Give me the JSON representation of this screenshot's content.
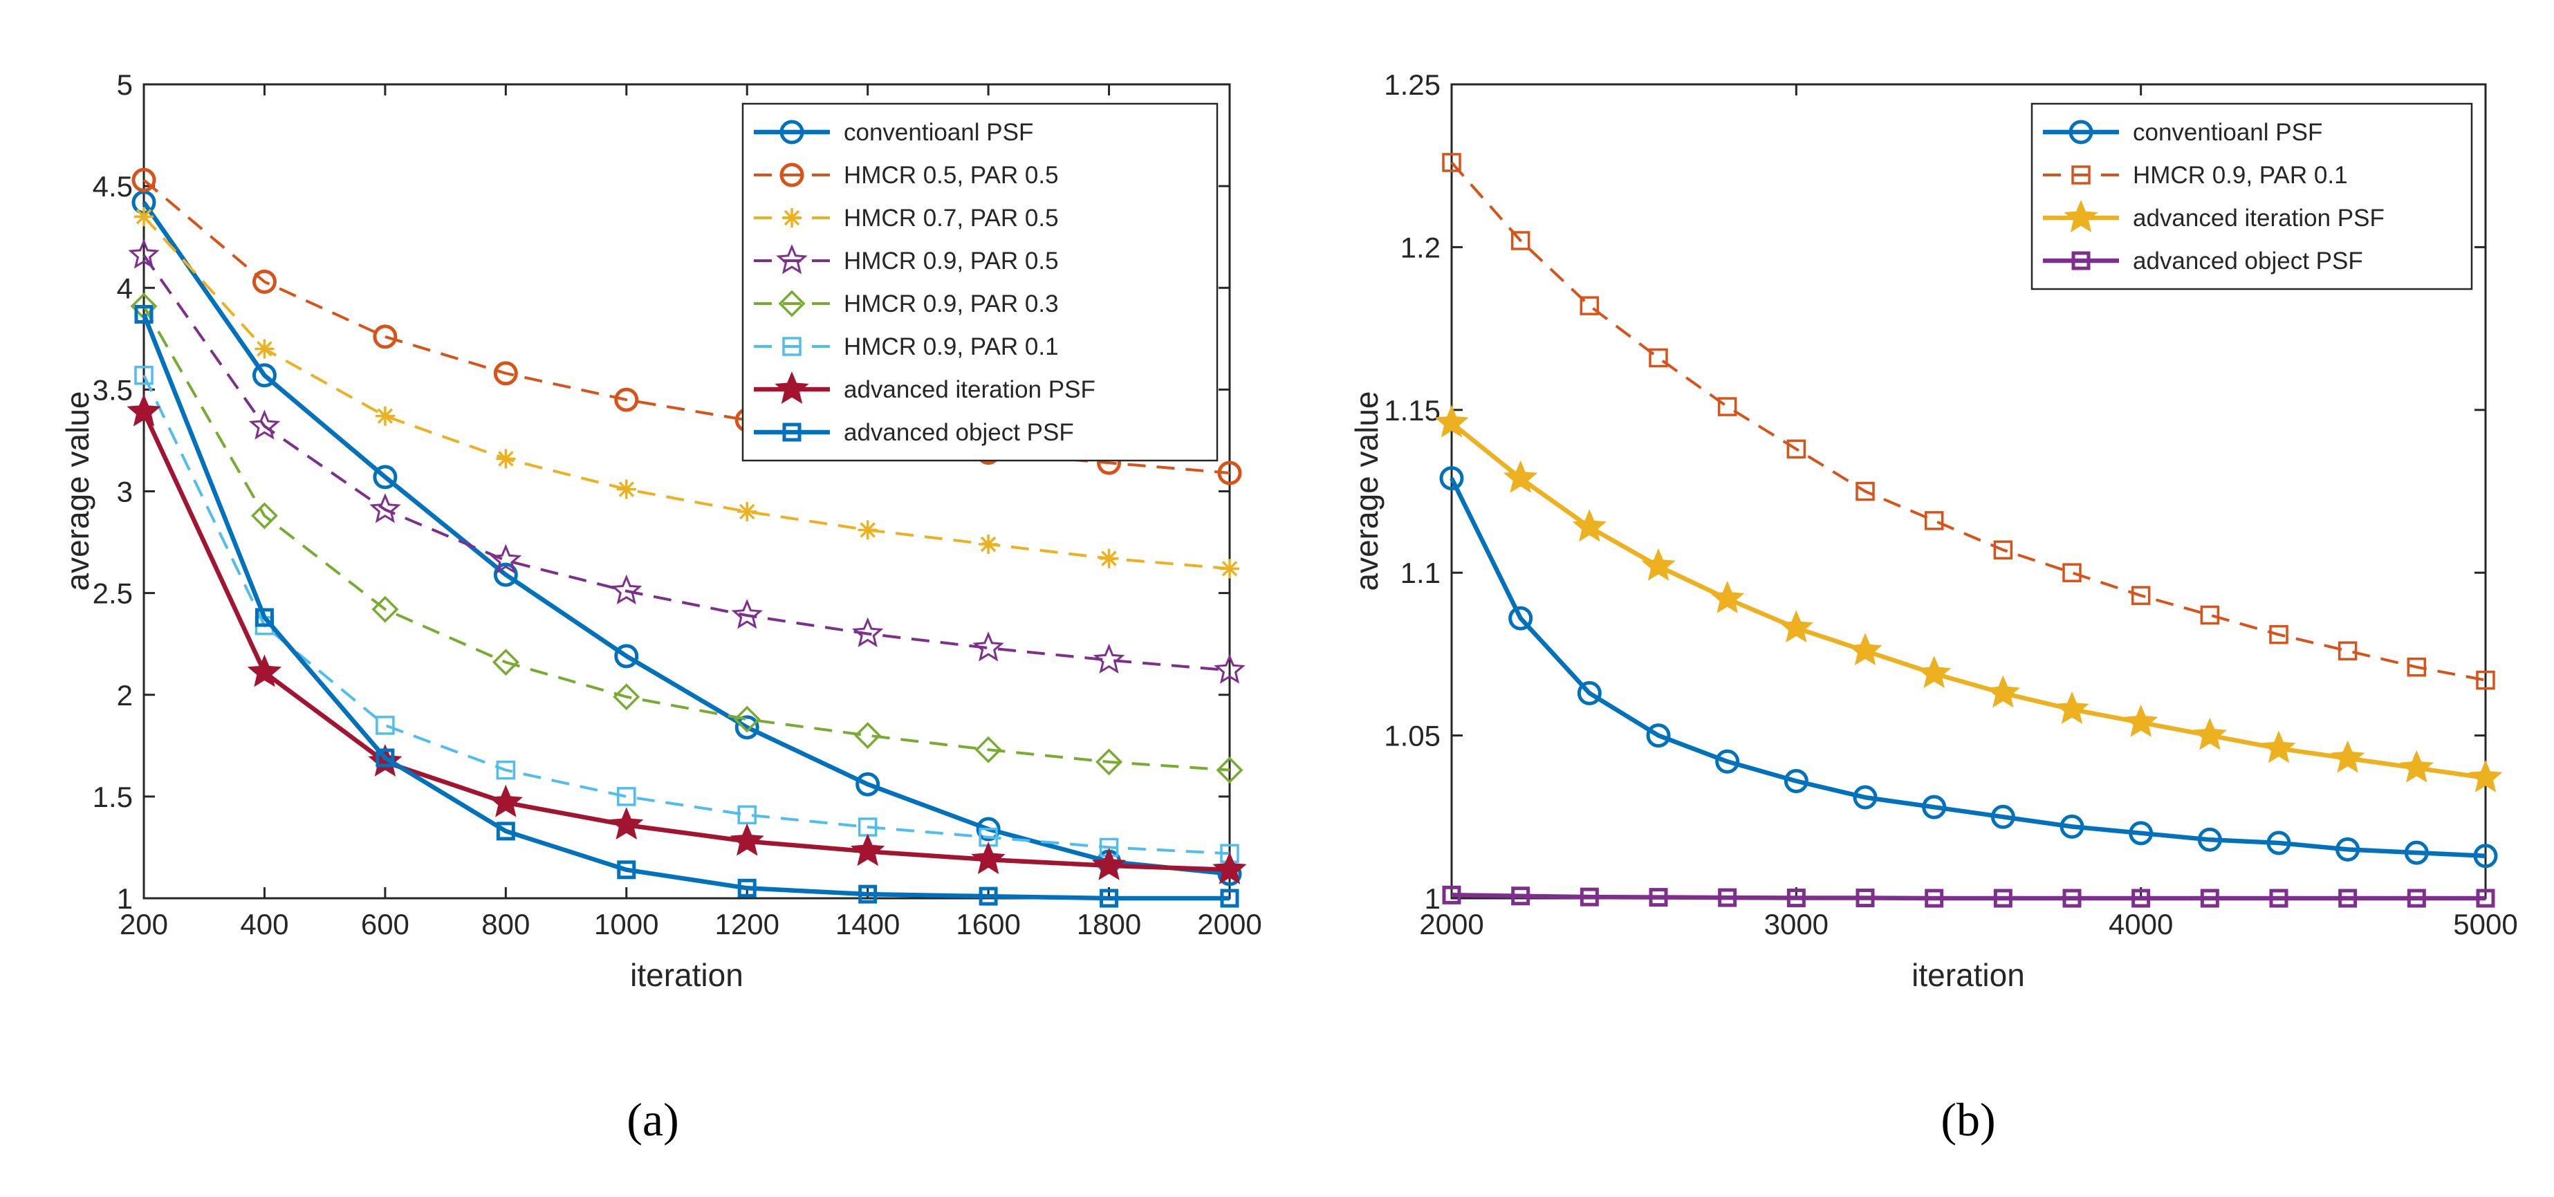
{
  "chart_data": [
    {
      "type": "line",
      "panel_label": "(a)",
      "xlabel": "iteration",
      "ylabel": "average value",
      "xlim": [
        200,
        2000
      ],
      "ylim": [
        1,
        5
      ],
      "xticks": [
        "200",
        "400",
        "600",
        "800",
        "1000",
        "1200",
        "1400",
        "1600",
        "1800",
        "2000"
      ],
      "yticks": [
        "1",
        "1.5",
        "2",
        "2.5",
        "3",
        "3.5",
        "4",
        "4.5",
        "5"
      ],
      "legend_position": "top-right",
      "x": [
        200,
        400,
        600,
        800,
        1000,
        1200,
        1400,
        1600,
        1800,
        2000
      ],
      "series": [
        {
          "name": "conventioanl PSF",
          "color": "#0072BD",
          "dash": "solid",
          "marker": "circle",
          "values": [
            4.42,
            3.57,
            3.07,
            2.59,
            2.19,
            1.84,
            1.56,
            1.34,
            1.18,
            1.12
          ]
        },
        {
          "name": "HMCR 0.5, PAR 0.5",
          "color": "#D95319",
          "dash": "dashed",
          "marker": "circle-open",
          "values": [
            4.53,
            4.03,
            3.76,
            3.58,
            3.45,
            3.35,
            3.26,
            3.19,
            3.14,
            3.09
          ]
        },
        {
          "name": "HMCR 0.7, PAR 0.5",
          "color": "#EDB120",
          "dash": "dashed",
          "marker": "asterisk",
          "values": [
            4.35,
            3.7,
            3.37,
            3.16,
            3.01,
            2.9,
            2.81,
            2.74,
            2.67,
            2.62
          ]
        },
        {
          "name": "HMCR 0.9, PAR 0.5",
          "color": "#7E2F8E",
          "dash": "dashed",
          "marker": "star",
          "values": [
            4.16,
            3.32,
            2.91,
            2.66,
            2.51,
            2.39,
            2.3,
            2.23,
            2.17,
            2.12
          ]
        },
        {
          "name": "HMCR 0.9, PAR 0.3",
          "color": "#77AC30",
          "dash": "dashed",
          "marker": "diamond",
          "values": [
            3.91,
            2.88,
            2.42,
            2.16,
            1.99,
            1.88,
            1.8,
            1.73,
            1.67,
            1.63
          ]
        },
        {
          "name": "HMCR 0.9, PAR 0.1",
          "color": "#4DBEEE",
          "dash": "dashed",
          "marker": "square-open",
          "values": [
            3.57,
            2.34,
            1.85,
            1.63,
            1.5,
            1.41,
            1.35,
            1.3,
            1.25,
            1.22
          ]
        },
        {
          "name": "advanced iteration PSF",
          "color": "#A2142F",
          "dash": "solid",
          "marker": "star-filled",
          "values": [
            3.39,
            2.11,
            1.67,
            1.47,
            1.36,
            1.28,
            1.23,
            1.19,
            1.16,
            1.14
          ]
        },
        {
          "name": "advanced object PSF",
          "color": "#0072BD",
          "dash": "solid",
          "marker": "square",
          "values": [
            3.87,
            2.38,
            1.69,
            1.33,
            1.14,
            1.05,
            1.02,
            1.01,
            1.0,
            1.0
          ]
        }
      ]
    },
    {
      "type": "line",
      "panel_label": "(b)",
      "xlabel": "iteration",
      "ylabel": "average value",
      "xlim": [
        2000,
        5000
      ],
      "ylim": [
        1,
        1.25
      ],
      "xticks": [
        "2000",
        "3000",
        "4000",
        "5000"
      ],
      "yticks": [
        "1",
        "1.05",
        "1.1",
        "1.15",
        "1.2",
        "1.25"
      ],
      "legend_position": "top-right",
      "x": [
        2000,
        2200,
        2400,
        2600,
        2800,
        3000,
        3200,
        3400,
        3600,
        3800,
        4000,
        4200,
        4400,
        4600,
        4800,
        5000
      ],
      "series": [
        {
          "name": "conventioanl PSF",
          "color": "#0072BD",
          "dash": "solid",
          "marker": "circle",
          "values": [
            1.129,
            1.086,
            1.063,
            1.05,
            1.042,
            1.036,
            1.031,
            1.028,
            1.025,
            1.022,
            1.02,
            1.018,
            1.017,
            1.015,
            1.014,
            1.013
          ]
        },
        {
          "name": "HMCR 0.9, PAR 0.1",
          "color": "#D95319",
          "dash": "dashed",
          "marker": "square-open",
          "values": [
            1.226,
            1.202,
            1.182,
            1.166,
            1.151,
            1.138,
            1.125,
            1.116,
            1.107,
            1.1,
            1.093,
            1.087,
            1.081,
            1.076,
            1.071,
            1.067
          ]
        },
        {
          "name": "advanced iteration PSF",
          "color": "#EDB120",
          "dash": "solid",
          "marker": "star-filled",
          "values": [
            1.146,
            1.129,
            1.114,
            1.102,
            1.092,
            1.083,
            1.076,
            1.069,
            1.063,
            1.058,
            1.054,
            1.05,
            1.046,
            1.043,
            1.04,
            1.037
          ]
        },
        {
          "name": "advanced object PSF",
          "color": "#7E2F8E",
          "dash": "solid",
          "marker": "square",
          "values": [
            1.001,
            1.0007,
            1.0004,
            1.0003,
            1.0002,
            1.0001,
            1.0001,
            1.0,
            1.0,
            1.0,
            1.0,
            1.0,
            1.0,
            1.0,
            1.0,
            1.0
          ]
        }
      ]
    }
  ]
}
